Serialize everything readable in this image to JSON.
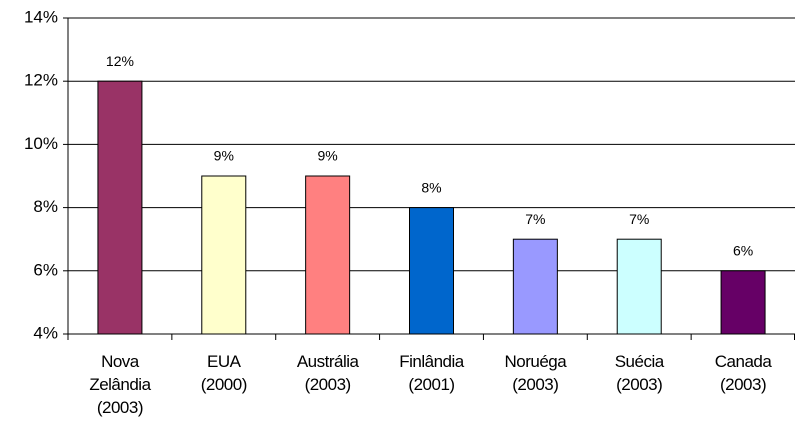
{
  "chart_data": {
    "type": "bar",
    "categories": [
      "Nova Zelândia (2003)",
      "EUA (2000)",
      "Austrália (2003)",
      "Finlândia (2001)",
      "Noruéga (2003)",
      "Suécia (2003)",
      "Canada (2003)"
    ],
    "values": [
      12,
      9,
      9,
      8,
      7,
      7,
      6
    ],
    "value_labels": [
      "12%",
      "9%",
      "9%",
      "8%",
      "7%",
      "7%",
      "6%"
    ],
    "colors": [
      "#993366",
      "#ffffcc",
      "#ff8080",
      "#0066cc",
      "#9999ff",
      "#ccffff",
      "#660066"
    ],
    "ylim": [
      4,
      14
    ],
    "yticks": [
      {
        "value": 4,
        "label": "4%"
      },
      {
        "value": 6,
        "label": "6%"
      },
      {
        "value": 8,
        "label": "8%"
      },
      {
        "value": 10,
        "label": "10%"
      },
      {
        "value": 12,
        "label": "12%"
      },
      {
        "value": 14,
        "label": "14%"
      }
    ],
    "grid": true
  }
}
